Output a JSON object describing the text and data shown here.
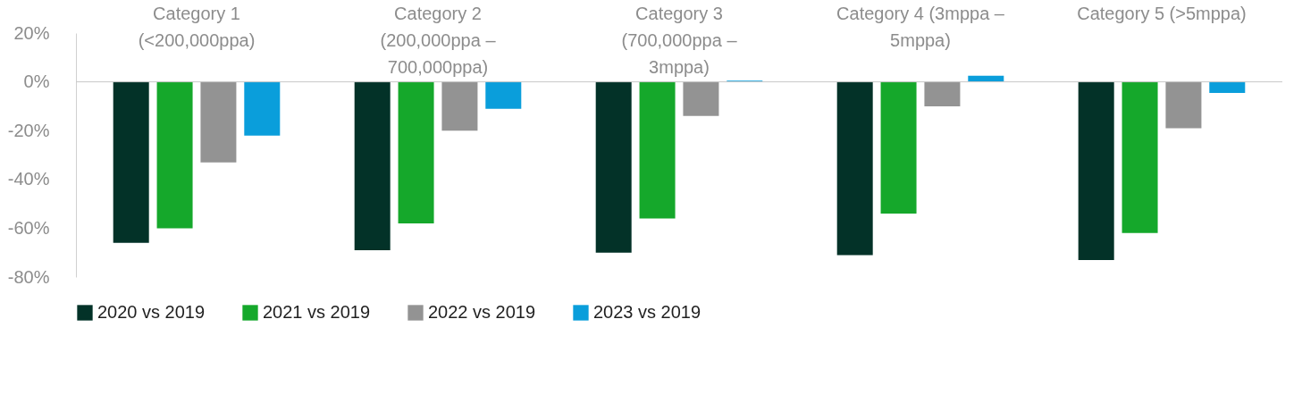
{
  "chart_data": {
    "type": "bar",
    "categories": [
      "Category 1 (<200,000ppa)",
      "Category 2 (200,000ppa – 700,000ppa)",
      "Category 3 (700,000ppa – 3mppa)",
      "Category 4 (3mppa – 5mppa)",
      "Category 5 (>5mppa)"
    ],
    "series": [
      {
        "name": "2020 vs 2019",
        "color": "#033228",
        "values": [
          -66,
          -69,
          -70,
          -71,
          -73
        ]
      },
      {
        "name": "2021 vs 2019",
        "color": "#15a82b",
        "values": [
          -60,
          -58,
          -56,
          -54,
          -62
        ]
      },
      {
        "name": "2022 vs 2019",
        "color": "#939393",
        "values": [
          -33,
          -20,
          -14,
          -10,
          -19
        ]
      },
      {
        "name": "2023 vs 2019",
        "color": "#0a9edb",
        "values": [
          -22,
          -11,
          0.5,
          2.5,
          -4.5
        ]
      }
    ],
    "ylim": [
      -80,
      20
    ],
    "yticks": [
      {
        "value": -80,
        "label": "-80%"
      },
      {
        "value": -60,
        "label": "-60%"
      },
      {
        "value": -40,
        "label": "-40%"
      },
      {
        "value": -20,
        "label": "-20%"
      },
      {
        "value": 0,
        "label": "0%"
      },
      {
        "value": 20,
        "label": "20%"
      }
    ],
    "grid": false,
    "legend": "bottom left"
  }
}
